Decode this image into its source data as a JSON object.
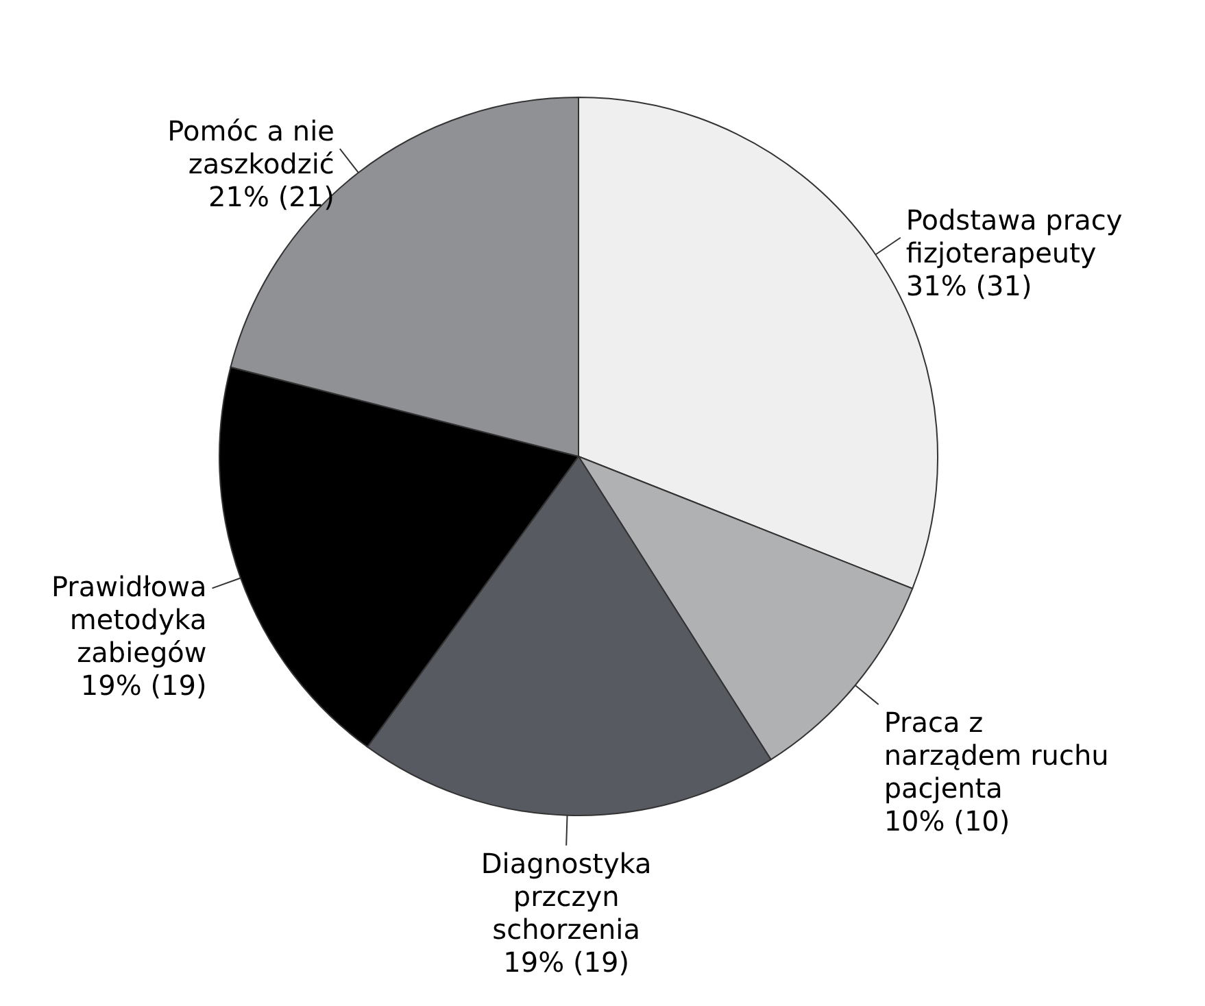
{
  "chart_data": {
    "type": "pie",
    "categories": [
      "Podstawa pracy\nfizjoterapeuty",
      "Praca z\nnarządem ruchu\npacjenta",
      "Diagnostyka\nprzczyn\nschorzenia",
      "Prawidłowa\nmetodyka\nzabiegów",
      "Pomóc a nie\nzaszkodzić"
    ],
    "values": [
      31,
      10,
      19,
      19,
      21
    ],
    "value_labels": [
      "31% (31)",
      "10% (10)",
      "19% (19)",
      "19% (19)",
      "21% (21)"
    ],
    "colors": [
      "#efefef",
      "#b0b1b3",
      "#575a61",
      "#000000",
      "#8f9195"
    ]
  }
}
